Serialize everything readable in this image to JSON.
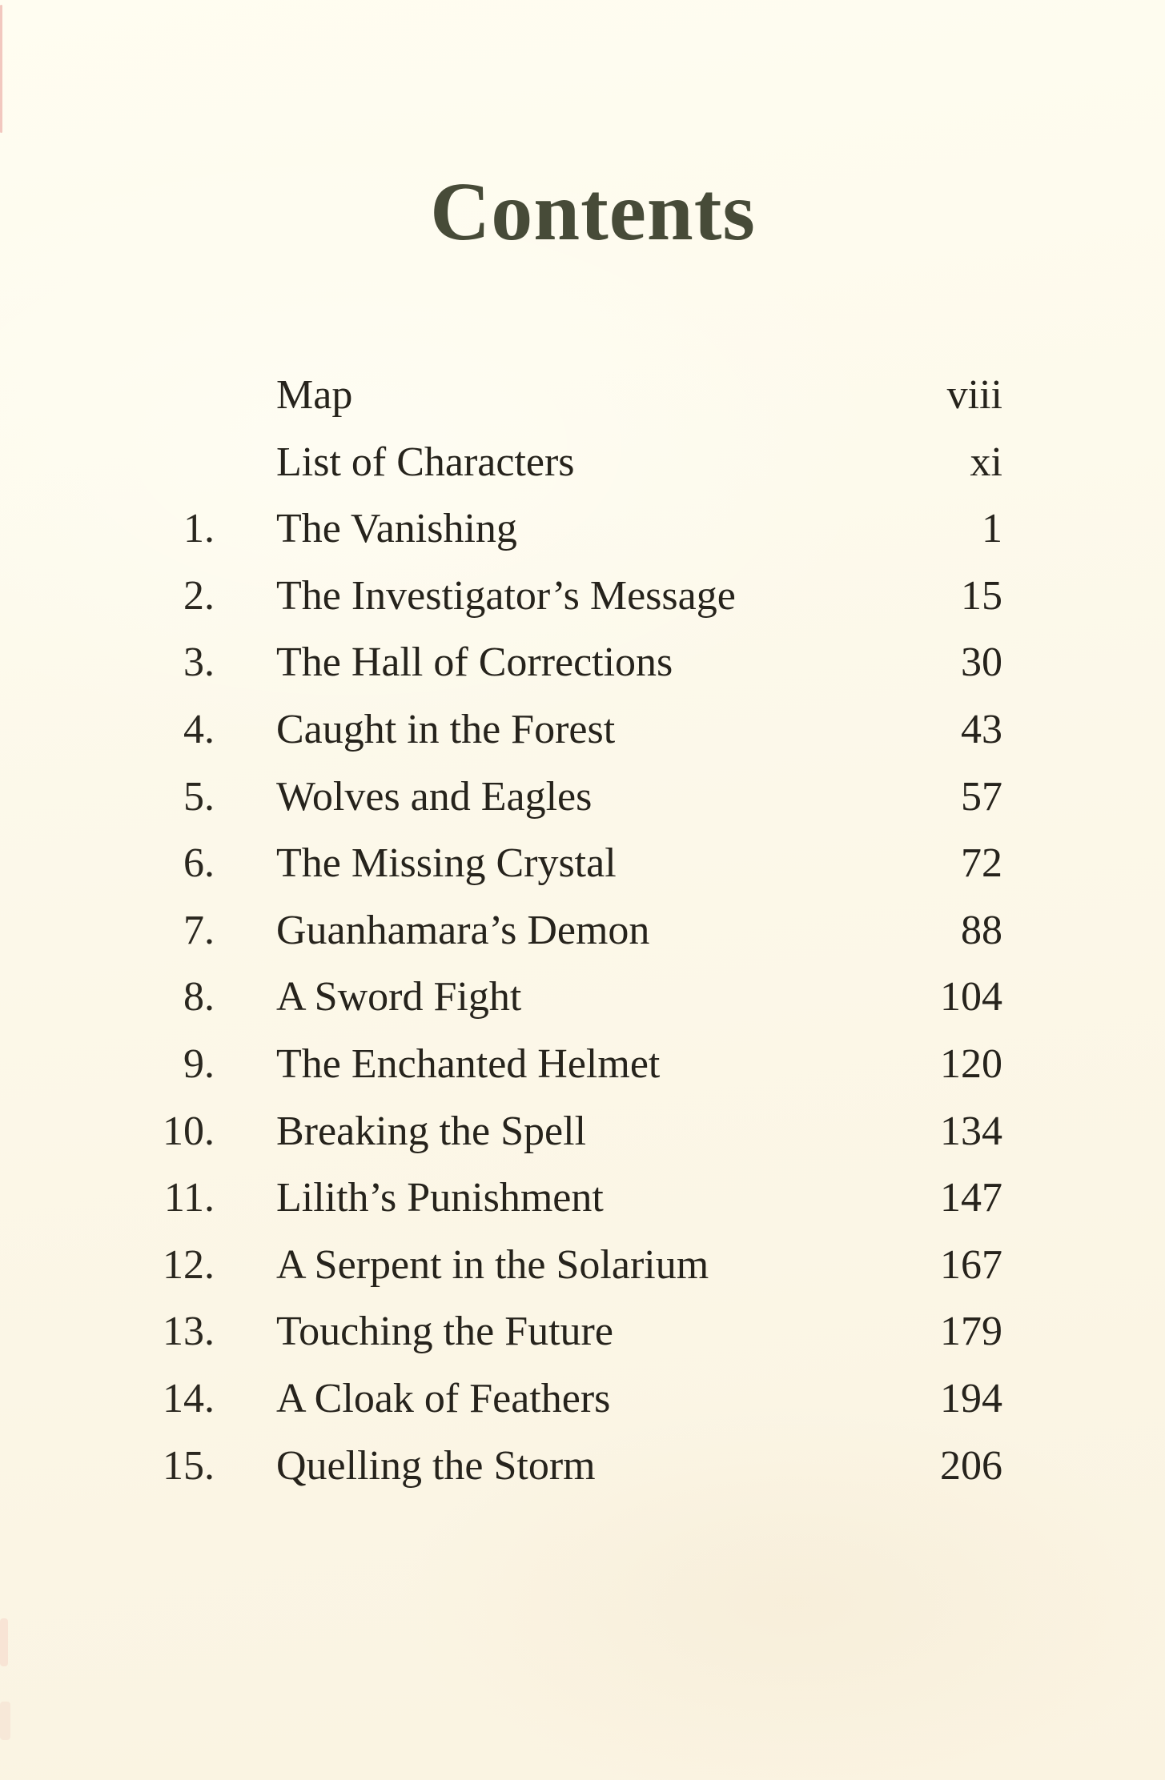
{
  "toc": {
    "title": "Contents",
    "entries": [
      {
        "num": "",
        "label": "Map",
        "page": "viii"
      },
      {
        "num": "",
        "label": "List of Characters",
        "page": "xi"
      },
      {
        "num": "1.",
        "label": "The Vanishing",
        "page": "1"
      },
      {
        "num": "2.",
        "label": "The Investigator’s Message",
        "page": "15"
      },
      {
        "num": "3.",
        "label": "The Hall of Corrections",
        "page": "30"
      },
      {
        "num": "4.",
        "label": "Caught in the Forest",
        "page": "43"
      },
      {
        "num": "5.",
        "label": "Wolves and Eagles",
        "page": "57"
      },
      {
        "num": "6.",
        "label": "The Missing Crystal",
        "page": "72"
      },
      {
        "num": "7.",
        "label": "Guanhamara’s Demon",
        "page": "88"
      },
      {
        "num": "8.",
        "label": "A Sword Fight",
        "page": "104"
      },
      {
        "num": "9.",
        "label": "The Enchanted Helmet",
        "page": "120"
      },
      {
        "num": "10.",
        "label": "Breaking the Spell",
        "page": "134"
      },
      {
        "num": "11.",
        "label": "Lilith’s Punishment",
        "page": "147"
      },
      {
        "num": "12.",
        "label": "A Serpent in the Solarium",
        "page": "167"
      },
      {
        "num": "13.",
        "label": "Touching the Future",
        "page": "179"
      },
      {
        "num": "14.",
        "label": "A Cloak of Feathers",
        "page": "194"
      },
      {
        "num": "15.",
        "label": "Quelling the Storm",
        "page": "206"
      }
    ],
    "colors": {
      "page_background": "#fcf8e9",
      "title_color": "#474b38",
      "text_color": "#26231c",
      "scan_artifact_red": "#e28882"
    }
  }
}
